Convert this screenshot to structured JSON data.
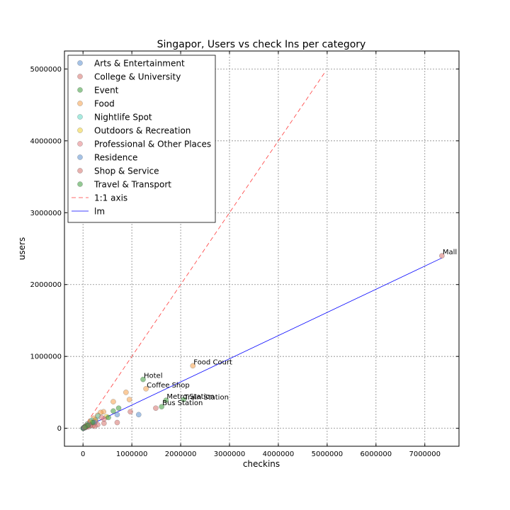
{
  "chart_data": {
    "type": "scatter",
    "title": "Singapor, Users vs check Ins per category",
    "xlabel": "checkins",
    "ylabel": "users",
    "xlim": [
      -380000,
      7700000
    ],
    "ylim": [
      -250000,
      5250000
    ],
    "grid": true,
    "legend_position": "top-left",
    "x_ticks": [
      0,
      1000000,
      2000000,
      3000000,
      4000000,
      5000000,
      6000000,
      7000000
    ],
    "x_tick_labels": [
      "0",
      "1000000",
      "2000000",
      "3000000",
      "4000000",
      "5000000",
      "6000000",
      "7000000"
    ],
    "y_ticks": [
      0,
      1000000,
      2000000,
      3000000,
      4000000,
      5000000
    ],
    "y_tick_labels": [
      "0",
      "1000000",
      "2000000",
      "3000000",
      "4000000",
      "5000000"
    ],
    "series": [
      {
        "name": "Arts & Entertainment",
        "color": "#5b8fd0",
        "points": [
          [
            1140000,
            190000
          ],
          [
            700000,
            190000
          ],
          [
            260000,
            120000
          ],
          [
            180000,
            90000
          ],
          [
            90000,
            40000
          ],
          [
            40000,
            15000
          ],
          [
            15000,
            5000
          ]
        ]
      },
      {
        "name": "College & University",
        "color": "#d6716b",
        "points": [
          [
            700000,
            80000
          ],
          [
            430000,
            70000
          ],
          [
            300000,
            50000
          ],
          [
            200000,
            35000
          ],
          [
            110000,
            20000
          ],
          [
            50000,
            10000
          ],
          [
            10000,
            2000
          ]
        ]
      },
      {
        "name": "Event",
        "color": "#3b9a3b",
        "points": [
          [
            12000,
            4000
          ],
          [
            5000,
            2000
          ],
          [
            2000,
            800
          ]
        ]
      },
      {
        "name": "Food",
        "color": "#f5a04a",
        "points": [
          [
            2250000,
            870000
          ],
          [
            1290000,
            550000
          ],
          [
            880000,
            500000
          ],
          [
            950000,
            400000
          ],
          [
            620000,
            370000
          ],
          [
            420000,
            230000
          ],
          [
            360000,
            220000
          ],
          [
            300000,
            180000
          ],
          [
            220000,
            140000
          ],
          [
            150000,
            100000
          ],
          [
            90000,
            60000
          ],
          [
            40000,
            25000
          ]
        ]
      },
      {
        "name": "Nightlife Spot",
        "color": "#5fd8c4",
        "points": [
          [
            310000,
            170000
          ],
          [
            180000,
            110000
          ],
          [
            90000,
            60000
          ],
          [
            40000,
            25000
          ],
          [
            15000,
            8000
          ]
        ]
      },
      {
        "name": "Outdoors & Recreation",
        "color": "#f0d234",
        "points": [
          [
            480000,
            160000
          ],
          [
            250000,
            110000
          ],
          [
            160000,
            80000
          ],
          [
            80000,
            40000
          ],
          [
            30000,
            15000
          ]
        ]
      },
      {
        "name": "Professional & Other Places",
        "color": "#e47d82",
        "points": [
          [
            430000,
            130000
          ],
          [
            380000,
            150000
          ],
          [
            250000,
            90000
          ],
          [
            130000,
            60000
          ],
          [
            60000,
            30000
          ],
          [
            20000,
            10000
          ]
        ]
      },
      {
        "name": "Residence",
        "color": "#5b8fd0",
        "points": [
          [
            230000,
            80000
          ],
          [
            120000,
            45000
          ],
          [
            50000,
            20000
          ],
          [
            15000,
            6000
          ]
        ]
      },
      {
        "name": "Shop & Service",
        "color": "#d6716b",
        "points": [
          [
            7350000,
            2400000
          ],
          [
            1490000,
            280000
          ],
          [
            970000,
            230000
          ],
          [
            240000,
            30000
          ],
          [
            150000,
            40000
          ],
          [
            80000,
            25000
          ],
          [
            30000,
            10000
          ]
        ]
      },
      {
        "name": "Travel & Transport",
        "color": "#3b9a3b",
        "points": [
          [
            1230000,
            680000
          ],
          [
            1700000,
            390000
          ],
          [
            2060000,
            400000
          ],
          [
            1610000,
            300000
          ],
          [
            730000,
            280000
          ],
          [
            620000,
            240000
          ],
          [
            520000,
            150000
          ],
          [
            200000,
            80000
          ],
          [
            100000,
            40000
          ],
          [
            40000,
            15000
          ]
        ]
      }
    ],
    "reference_lines": [
      {
        "name": "1:1 axis",
        "color": "#ff3b3b",
        "style": "dashed",
        "from": [
          0,
          0
        ],
        "to": [
          4950000,
          4950000
        ]
      },
      {
        "name": "lm",
        "color": "#0000ff",
        "style": "solid",
        "from": [
          0,
          0
        ],
        "to": [
          7350000,
          2370000
        ]
      }
    ],
    "annotations": [
      {
        "text": "Mall",
        "x": 7350000,
        "y": 2400000
      },
      {
        "text": "Food Court",
        "x": 2250000,
        "y": 870000
      },
      {
        "text": "Hotel",
        "x": 1230000,
        "y": 680000
      },
      {
        "text": "Coffee Shop",
        "x": 1290000,
        "y": 550000
      },
      {
        "text": "Metro Station",
        "x": 1700000,
        "y": 390000
      },
      {
        "text": "Train Station",
        "x": 2060000,
        "y": 380000
      },
      {
        "text": "Bus Station",
        "x": 1610000,
        "y": 300000
      }
    ]
  }
}
